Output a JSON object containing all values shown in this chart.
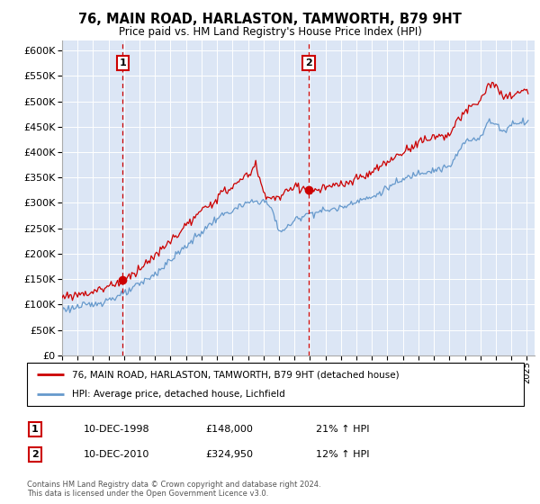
{
  "title": "76, MAIN ROAD, HARLASTON, TAMWORTH, B79 9HT",
  "subtitle": "Price paid vs. HM Land Registry's House Price Index (HPI)",
  "legend_line1": "76, MAIN ROAD, HARLASTON, TAMWORTH, B79 9HT (detached house)",
  "legend_line2": "HPI: Average price, detached house, Lichfield",
  "footnote": "Contains HM Land Registry data © Crown copyright and database right 2024.\nThis data is licensed under the Open Government Licence v3.0.",
  "sale1_label": "1",
  "sale1_date": "10-DEC-1998",
  "sale1_price": "£148,000",
  "sale1_hpi": "21% ↑ HPI",
  "sale1_year": 1998.92,
  "sale1_value": 148000,
  "sale2_label": "2",
  "sale2_date": "10-DEC-2010",
  "sale2_price": "£324,950",
  "sale2_hpi": "12% ↑ HPI",
  "sale2_year": 2010.92,
  "sale2_value": 324950,
  "ylim": [
    0,
    620000
  ],
  "yticks": [
    0,
    50000,
    100000,
    150000,
    200000,
    250000,
    300000,
    350000,
    400000,
    450000,
    500000,
    550000,
    600000
  ],
  "plot_bg": "#dce6f5",
  "red_color": "#cc0000",
  "blue_color": "#6699cc",
  "marker_color": "#cc0000",
  "vline_color": "#cc0000",
  "hpi_keypoints": [
    [
      1995,
      90000
    ],
    [
      1997,
      100000
    ],
    [
      1999,
      120000
    ],
    [
      2001,
      160000
    ],
    [
      2003,
      215000
    ],
    [
      2005,
      270000
    ],
    [
      2007,
      300000
    ],
    [
      2008,
      305000
    ],
    [
      2008.5,
      290000
    ],
    [
      2009,
      245000
    ],
    [
      2009.5,
      250000
    ],
    [
      2010,
      265000
    ],
    [
      2010.5,
      275000
    ],
    [
      2011,
      280000
    ],
    [
      2012,
      285000
    ],
    [
      2013,
      290000
    ],
    [
      2014,
      305000
    ],
    [
      2015,
      310000
    ],
    [
      2016,
      330000
    ],
    [
      2017,
      345000
    ],
    [
      2018,
      360000
    ],
    [
      2019,
      365000
    ],
    [
      2020,
      370000
    ],
    [
      2021,
      420000
    ],
    [
      2022,
      430000
    ],
    [
      2022.5,
      460000
    ],
    [
      2023,
      455000
    ],
    [
      2023.5,
      440000
    ],
    [
      2024,
      455000
    ],
    [
      2024.5,
      460000
    ]
  ],
  "red_keypoints": [
    [
      1995,
      115000
    ],
    [
      1997,
      125000
    ],
    [
      1999,
      148000
    ],
    [
      2001,
      195000
    ],
    [
      2003,
      255000
    ],
    [
      2005,
      310000
    ],
    [
      2007,
      355000
    ],
    [
      2007.5,
      375000
    ],
    [
      2008,
      320000
    ],
    [
      2008.5,
      310000
    ],
    [
      2009,
      310000
    ],
    [
      2009.5,
      320000
    ],
    [
      2010,
      335000
    ],
    [
      2010.92,
      324950
    ],
    [
      2011,
      320000
    ],
    [
      2012,
      330000
    ],
    [
      2013,
      335000
    ],
    [
      2014,
      345000
    ],
    [
      2015,
      360000
    ],
    [
      2016,
      380000
    ],
    [
      2017,
      400000
    ],
    [
      2018,
      420000
    ],
    [
      2019,
      430000
    ],
    [
      2020,
      435000
    ],
    [
      2021,
      480000
    ],
    [
      2022,
      500000
    ],
    [
      2022.5,
      535000
    ],
    [
      2023,
      530000
    ],
    [
      2023.5,
      505000
    ],
    [
      2024,
      510000
    ],
    [
      2024.5,
      520000
    ]
  ]
}
